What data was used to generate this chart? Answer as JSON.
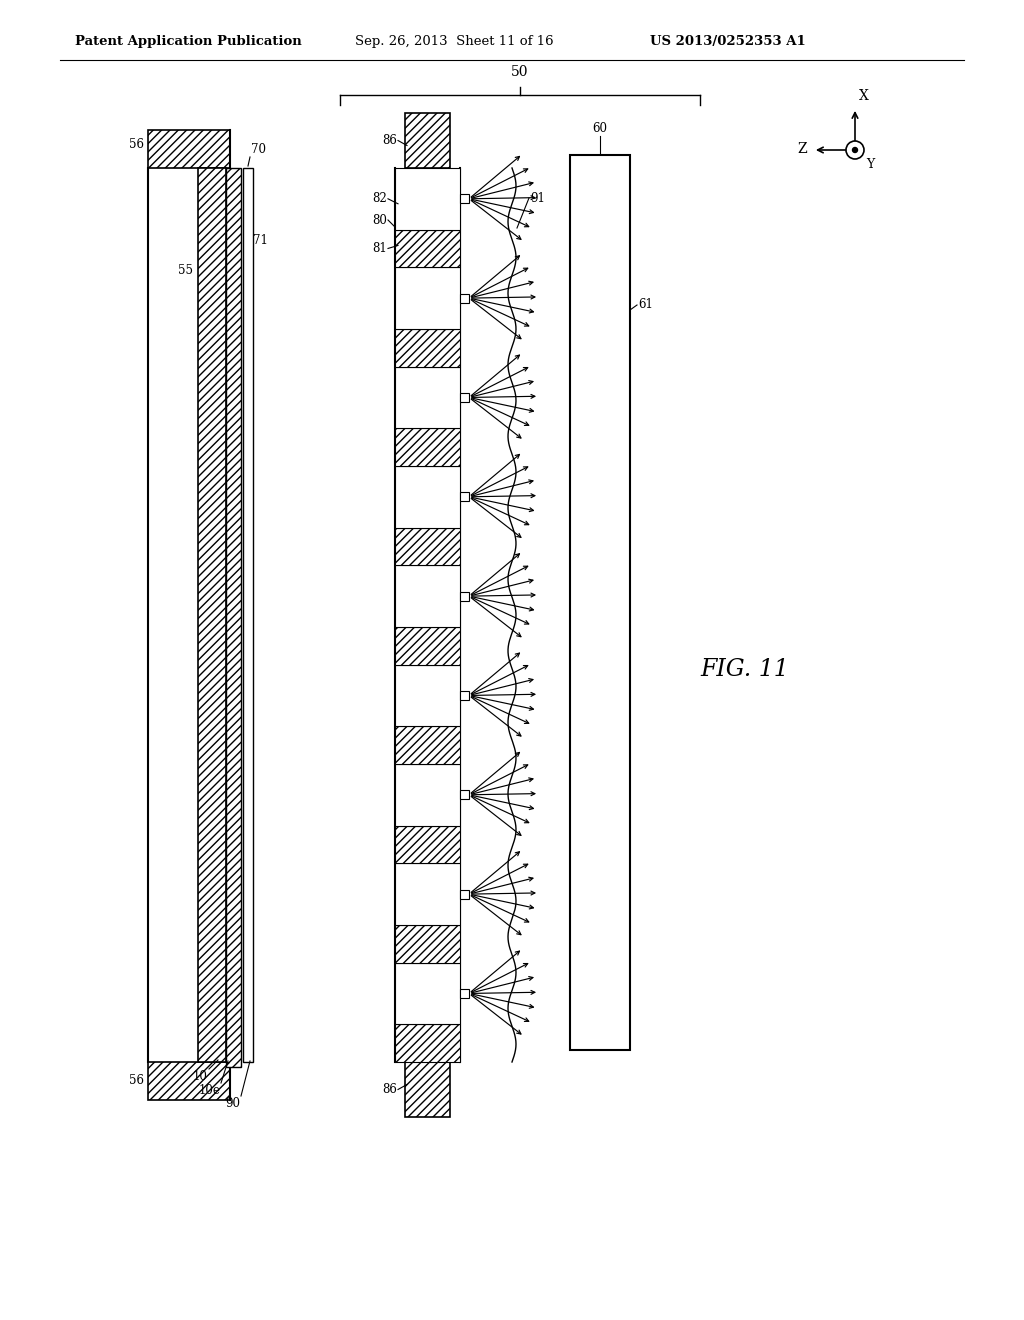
{
  "bg_color": "#ffffff",
  "line_color": "#000000",
  "header_text1": "Patent Application Publication",
  "header_text2": "Sep. 26, 2013  Sheet 11 of 16",
  "header_text3": "US 2013/0252353 A1",
  "fig_label": "FIG. 11"
}
